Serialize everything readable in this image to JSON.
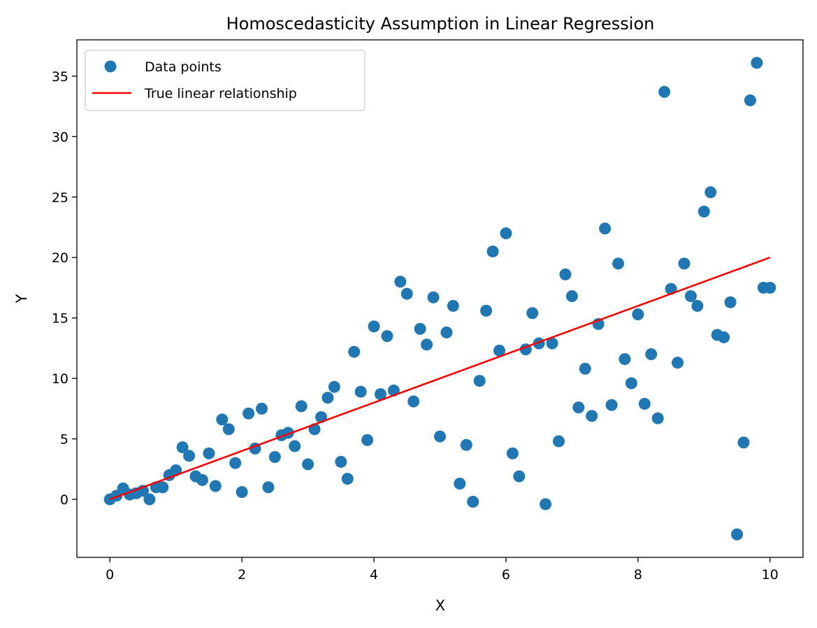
{
  "chart_data": {
    "type": "scatter",
    "title": "Homoscedasticity Assumption in Linear Regression",
    "xlabel": "X",
    "ylabel": "Y",
    "xlim": [
      -0.5,
      10.5
    ],
    "ylim": [
      -4.8,
      38.0
    ],
    "xticks": [
      0,
      2,
      4,
      6,
      8,
      10
    ],
    "yticks": [
      0,
      5,
      10,
      15,
      20,
      25,
      30,
      35
    ],
    "grid": false,
    "legend_position": "top-left",
    "colors": {
      "points": "#1f77b4",
      "line": "#ff0000"
    },
    "series": [
      {
        "name": "Data points",
        "kind": "scatter",
        "x": [
          0.0,
          0.1,
          0.2,
          0.3,
          0.4,
          0.5,
          0.6,
          0.7,
          0.8,
          0.9,
          1.0,
          1.1,
          1.2,
          1.3,
          1.4,
          1.5,
          1.6,
          1.7,
          1.8,
          1.9,
          2.0,
          2.1,
          2.2,
          2.3,
          2.4,
          2.5,
          2.6,
          2.7,
          2.8,
          2.9,
          3.0,
          3.1,
          3.2,
          3.3,
          3.4,
          3.5,
          3.6,
          3.7,
          3.8,
          3.9,
          4.0,
          4.1,
          4.2,
          4.3,
          4.4,
          4.5,
          4.6,
          4.7,
          4.8,
          4.9,
          5.0,
          5.1,
          5.2,
          5.3,
          5.4,
          5.5,
          5.6,
          5.7,
          5.8,
          5.9,
          6.0,
          6.1,
          6.2,
          6.3,
          6.4,
          6.5,
          6.6,
          6.7,
          6.8,
          6.9,
          7.0,
          7.1,
          7.2,
          7.3,
          7.4,
          7.5,
          7.6,
          7.7,
          7.8,
          7.9,
          8.0,
          8.1,
          8.2,
          8.3,
          8.4,
          8.5,
          8.6,
          8.7,
          8.8,
          8.9,
          9.0,
          9.1,
          9.2,
          9.3,
          9.4,
          9.5,
          9.6,
          9.7,
          9.8,
          9.9,
          10.0
        ],
        "y": [
          0.0,
          0.3,
          0.9,
          0.4,
          0.5,
          0.7,
          0.0,
          1.0,
          1.0,
          2.0,
          2.4,
          4.3,
          3.6,
          1.9,
          1.6,
          3.8,
          1.1,
          6.6,
          5.8,
          3.0,
          0.6,
          7.1,
          4.2,
          7.5,
          1.0,
          3.5,
          5.3,
          5.5,
          4.4,
          7.7,
          2.9,
          5.8,
          6.8,
          8.4,
          9.3,
          3.1,
          1.7,
          12.2,
          8.9,
          4.9,
          14.3,
          8.7,
          13.5,
          9.0,
          18.0,
          17.0,
          8.1,
          14.1,
          12.8,
          16.7,
          5.2,
          13.8,
          16.0,
          1.3,
          4.5,
          -0.2,
          9.8,
          15.6,
          20.5,
          12.3,
          22.0,
          3.8,
          1.9,
          12.4,
          15.4,
          12.9,
          -0.4,
          12.9,
          4.8,
          18.6,
          16.8,
          7.6,
          10.8,
          6.9,
          14.5,
          22.4,
          7.8,
          19.5,
          11.6,
          9.6,
          15.3,
          7.9,
          12.0,
          6.7,
          33.7,
          17.4,
          11.3,
          19.5,
          16.8,
          16.0,
          23.8,
          25.4,
          13.6,
          13.4,
          16.3,
          -2.9,
          4.7,
          33.0,
          36.1,
          17.5,
          17.5
        ]
      },
      {
        "name": "True linear relationship",
        "kind": "line",
        "x": [
          0,
          10
        ],
        "y": [
          0,
          20
        ]
      }
    ]
  }
}
